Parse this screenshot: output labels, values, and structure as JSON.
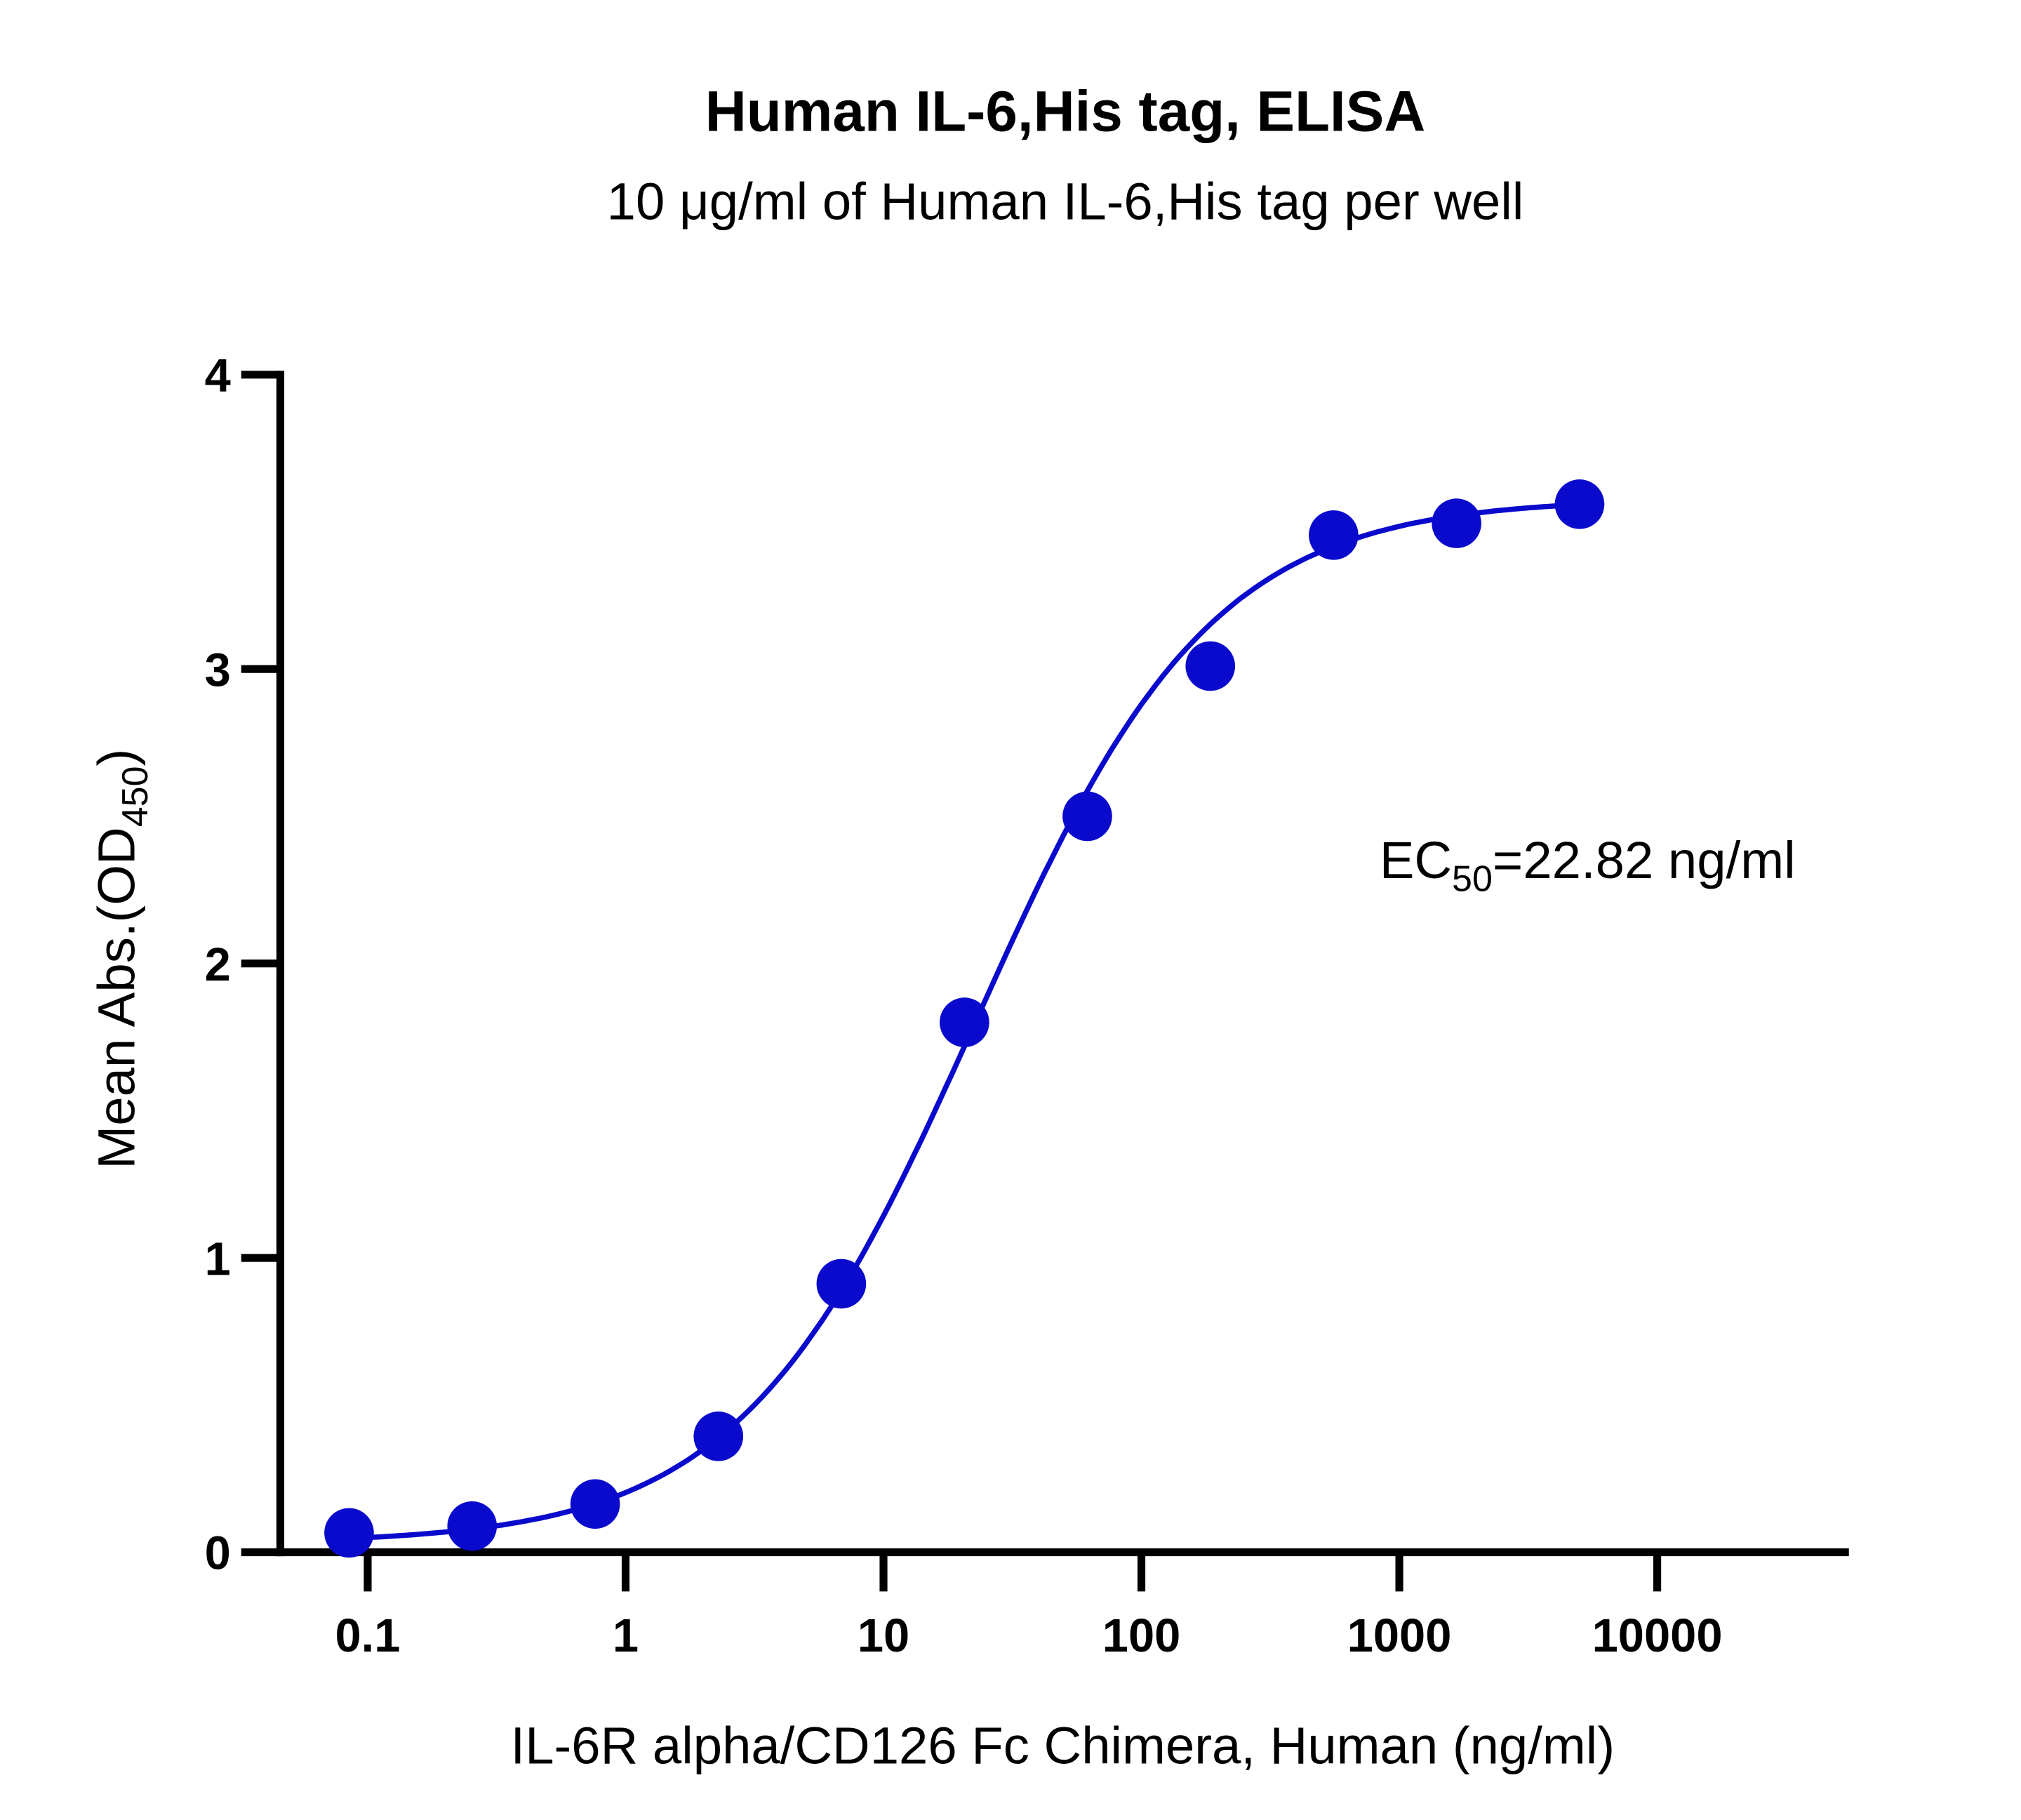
{
  "chart_data": {
    "type": "scatter",
    "title": "Human IL-6,His tag, ELISA",
    "subtitle": "10 μg/ml of Human IL-6,His tag per well",
    "xlabel": "IL-6R alpha/CD126 Fc Chimera, Human (ng/ml)",
    "ylabel_main": "Mean Abs.(OD",
    "ylabel_sub": "450",
    "ylabel_end": ")",
    "xscale": "log",
    "xlim": [
      0.05,
      30000
    ],
    "ylim": [
      0,
      4
    ],
    "xticks": [
      0.1,
      1,
      10,
      100,
      1000,
      10000
    ],
    "xtick_labels": [
      "0.1",
      "1",
      "10",
      "100",
      "1000",
      "10000"
    ],
    "yticks": [
      0,
      1,
      2,
      3,
      4
    ],
    "ytick_labels": [
      "0",
      "1",
      "2",
      "3",
      "4"
    ],
    "grid": false,
    "color": "#0A0ACD",
    "series": [
      {
        "name": "IL-6R alpha/CD126 Fc Chimera",
        "x": [
          0.0847,
          0.254,
          0.762,
          2.29,
          6.86,
          20.6,
          61.7,
          185,
          556,
          1667,
          5000
        ],
        "y": [
          0.066,
          0.089,
          0.164,
          0.394,
          0.912,
          1.8,
          2.5,
          3.01,
          3.455,
          3.495,
          3.56
        ]
      }
    ],
    "fit": {
      "model": "4PL",
      "bottom": 0.03,
      "top": 3.58,
      "ec50": 22.82,
      "hill": 0.95
    },
    "annotation": {
      "prefix": "EC",
      "sub": "50",
      "suffix": "=22.82 ng/ml"
    }
  }
}
